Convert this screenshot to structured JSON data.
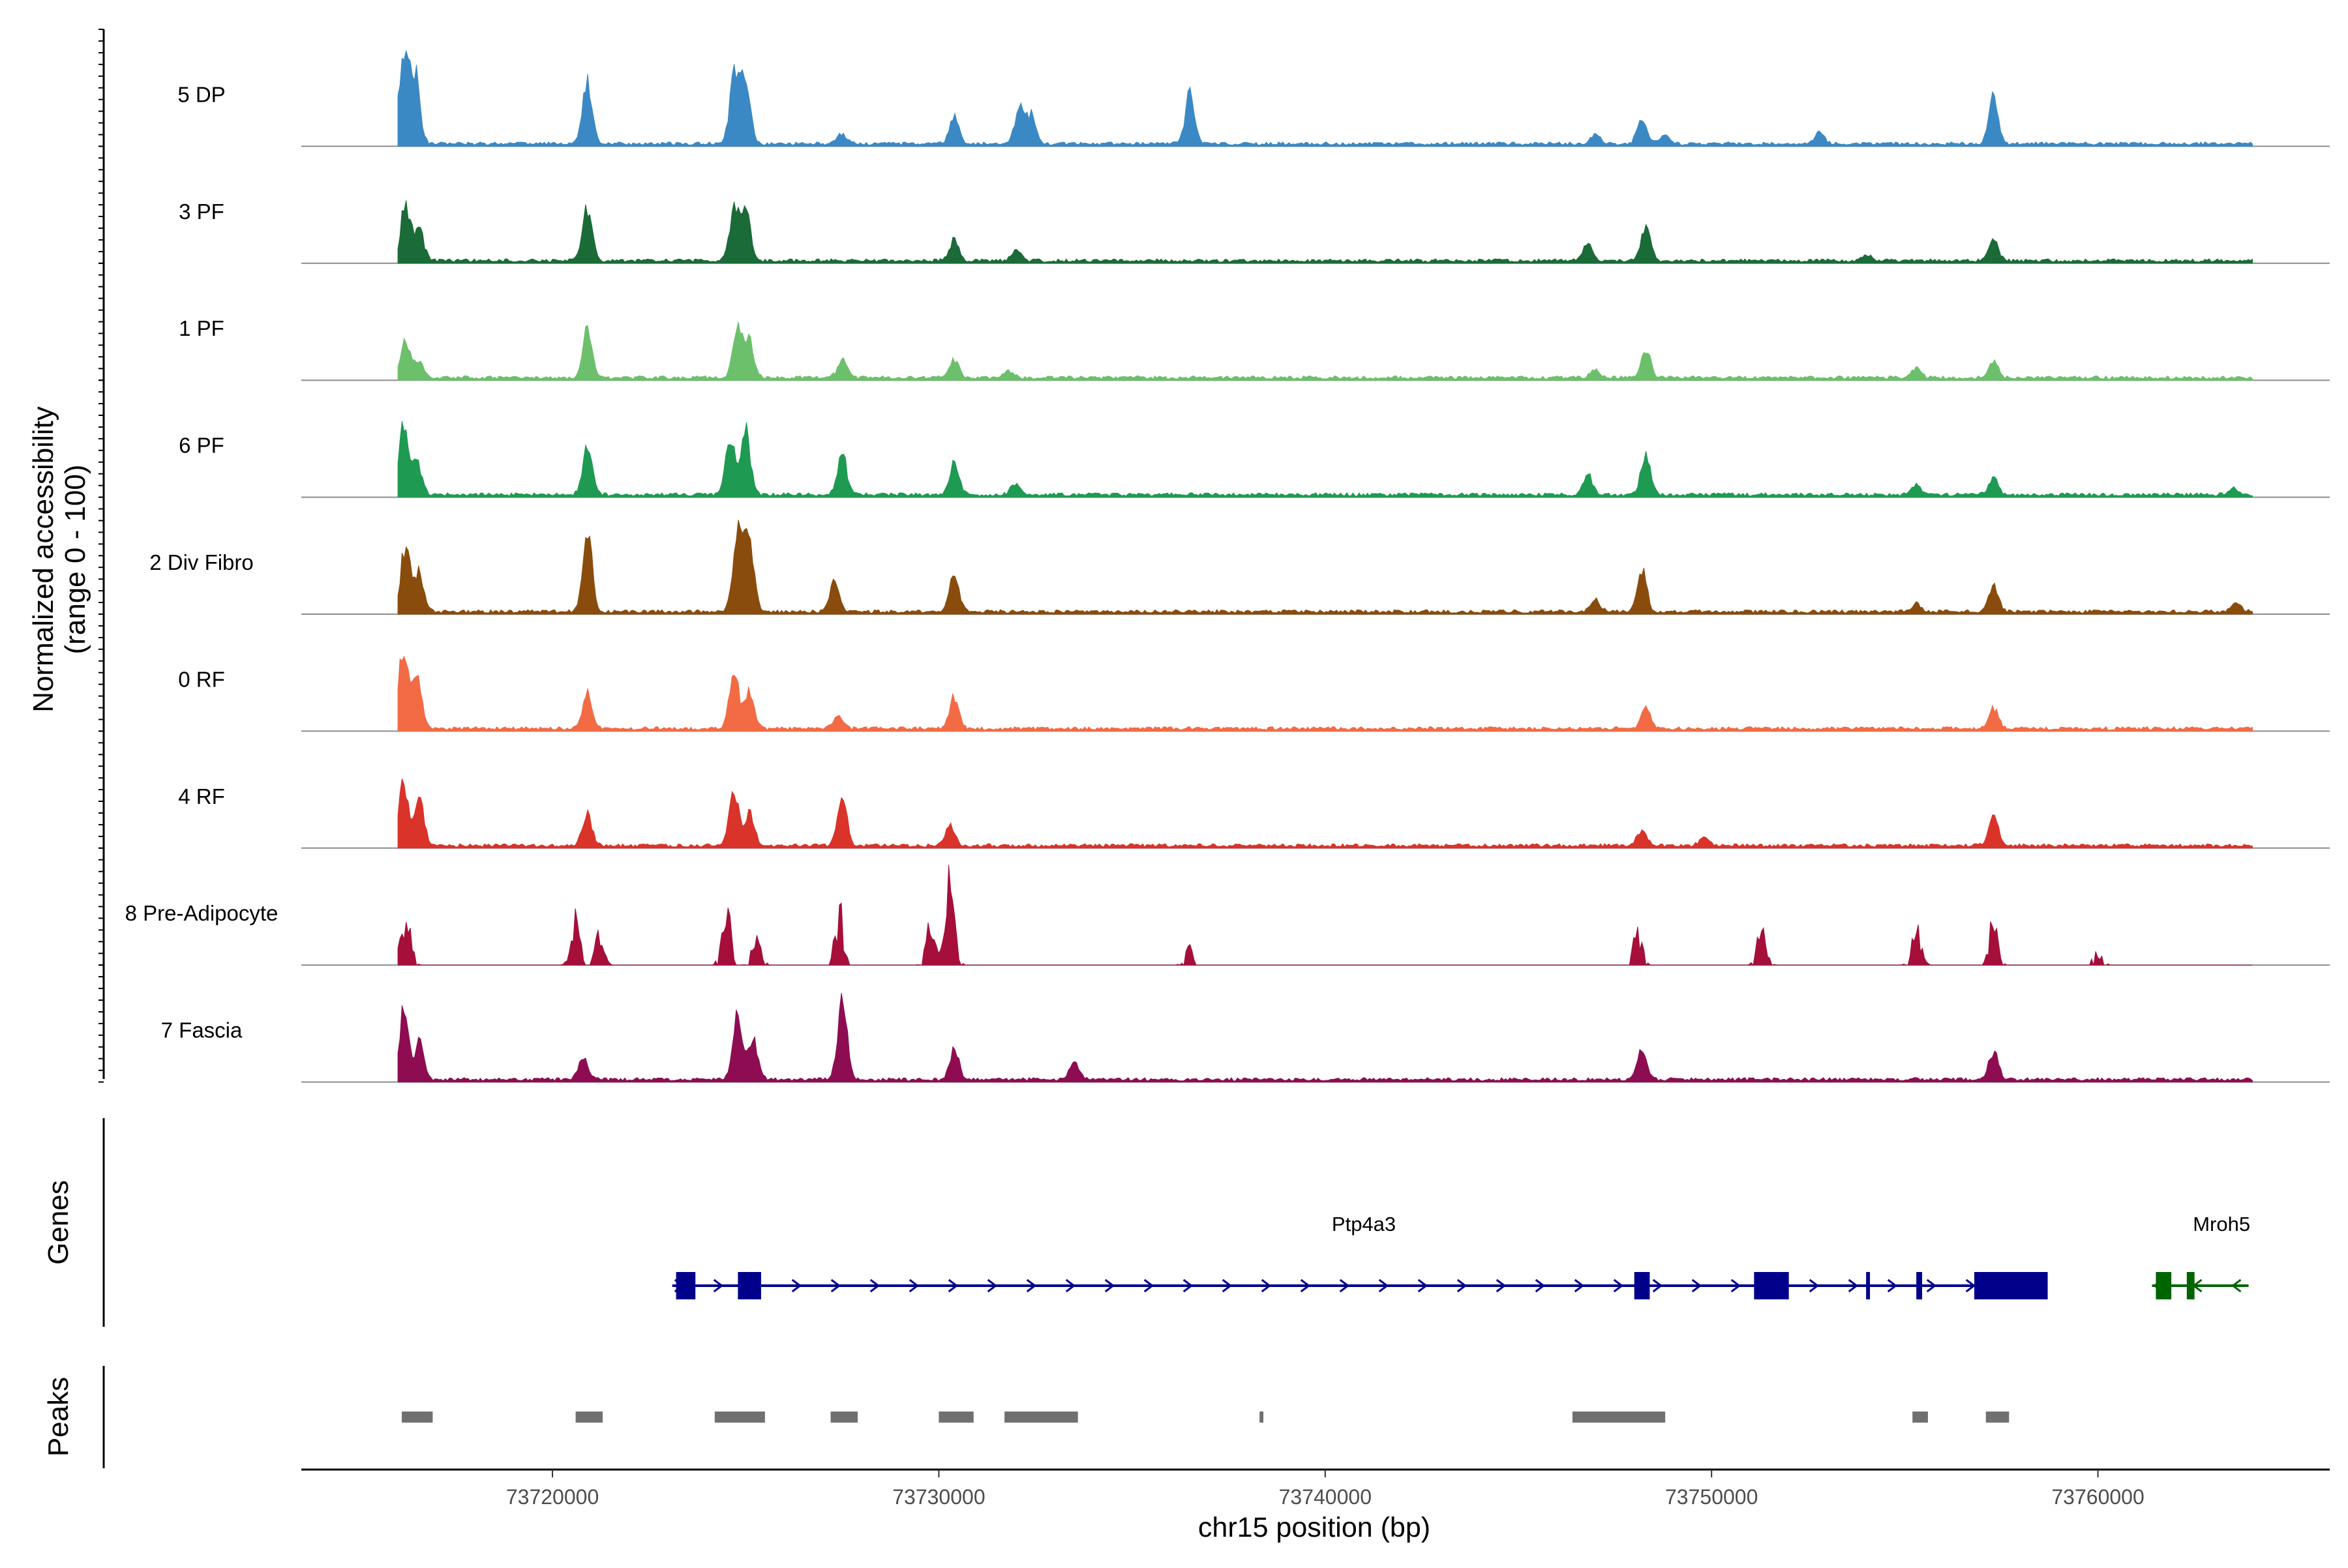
{
  "chart_data": {
    "type": "area",
    "title": "",
    "ylabel_line1": "Normalized accessibility",
    "ylabel_line2": "(range 0 - 100)",
    "ylim": [
      0,
      100
    ],
    "xlabel": "chr15 position (bp)",
    "xlim": [
      73713500,
      73766000
    ],
    "xticks": [
      73720000,
      73730000,
      73740000,
      73750000,
      73760000
    ],
    "xtick_labels": [
      "73720000",
      "73730000",
      "73740000",
      "73750000",
      "73760000"
    ],
    "panels": {
      "genes_label": "Genes",
      "peaks_label": "Peaks"
    },
    "tracks": [
      {
        "name": "5 DP",
        "color": "#3A89C4",
        "sparse": false,
        "peaks": [
          [
            73716150,
            100
          ],
          [
            73716450,
            70
          ],
          [
            73720900,
            65
          ],
          [
            73724700,
            70
          ],
          [
            73725000,
            75
          ],
          [
            73727500,
            10
          ],
          [
            73730400,
            28
          ],
          [
            73732100,
            42
          ],
          [
            73732400,
            30
          ],
          [
            73736500,
            55
          ],
          [
            73748200,
            25
          ],
          [
            73747000,
            10
          ],
          [
            73752800,
            12
          ],
          [
            73757300,
            50
          ],
          [
            73748800,
            10
          ]
        ]
      },
      {
        "name": "3 PF",
        "color": "#1A6B38",
        "sparse": false,
        "peaks": [
          [
            73716200,
            60
          ],
          [
            73716550,
            35
          ],
          [
            73720900,
            55
          ],
          [
            73724700,
            55
          ],
          [
            73725000,
            60
          ],
          [
            73730400,
            22
          ],
          [
            73732000,
            12
          ],
          [
            73746800,
            18
          ],
          [
            73748300,
            40
          ],
          [
            73757300,
            25
          ],
          [
            73754000,
            6
          ]
        ]
      },
      {
        "name": "1 PF",
        "color": "#6DC06B",
        "sparse": false,
        "peaks": [
          [
            73716200,
            38
          ],
          [
            73716550,
            18
          ],
          [
            73720900,
            52
          ],
          [
            73724800,
            55
          ],
          [
            73725100,
            38
          ],
          [
            73727500,
            20
          ],
          [
            73730400,
            20
          ],
          [
            73731800,
            8
          ],
          [
            73748300,
            32
          ],
          [
            73755300,
            10
          ],
          [
            73757300,
            16
          ],
          [
            73747000,
            8
          ]
        ]
      },
      {
        "name": "6 PF",
        "color": "#1E9A52",
        "sparse": false,
        "peaks": [
          [
            73716150,
            70
          ],
          [
            73716500,
            35
          ],
          [
            73720900,
            52
          ],
          [
            73724600,
            58
          ],
          [
            73725000,
            65
          ],
          [
            73727500,
            42
          ],
          [
            73730400,
            35
          ],
          [
            73732000,
            12
          ],
          [
            73746800,
            20
          ],
          [
            73748300,
            45
          ],
          [
            73755300,
            10
          ],
          [
            73757300,
            18
          ],
          [
            73763500,
            6
          ]
        ]
      },
      {
        "name": "2 Div Fibro",
        "color": "#8A4C0C",
        "sparse": false,
        "peaks": [
          [
            73716200,
            70
          ],
          [
            73716550,
            40
          ],
          [
            73720900,
            85
          ],
          [
            73724800,
            92
          ],
          [
            73725100,
            75
          ],
          [
            73727300,
            32
          ],
          [
            73730400,
            38
          ],
          [
            73748200,
            42
          ],
          [
            73747000,
            12
          ],
          [
            73757300,
            28
          ],
          [
            73755300,
            8
          ],
          [
            73763600,
            8
          ]
        ]
      },
      {
        "name": "0 RF",
        "color": "#F26B45",
        "sparse": false,
        "peaks": [
          [
            73716150,
            90
          ],
          [
            73716500,
            55
          ],
          [
            73720900,
            38
          ],
          [
            73724700,
            65
          ],
          [
            73725100,
            42
          ],
          [
            73727400,
            14
          ],
          [
            73730400,
            32
          ],
          [
            73748300,
            22
          ],
          [
            73757300,
            22
          ]
        ]
      },
      {
        "name": "4 RF",
        "color": "#D9332A",
        "sparse": false,
        "peaks": [
          [
            73716150,
            70
          ],
          [
            73716550,
            50
          ],
          [
            73720900,
            35
          ],
          [
            73724700,
            60
          ],
          [
            73725100,
            35
          ],
          [
            73727500,
            52
          ],
          [
            73730300,
            20
          ],
          [
            73748200,
            18
          ],
          [
            73757300,
            32
          ],
          [
            73749800,
            8
          ]
        ]
      },
      {
        "name": "8 Pre-Adipocyte",
        "color": "#A50F3A",
        "sparse": true,
        "peaks": [
          [
            73716200,
            60
          ],
          [
            73720600,
            45
          ],
          [
            73721200,
            35
          ],
          [
            73724500,
            50
          ],
          [
            73725300,
            30
          ],
          [
            73727400,
            50
          ],
          [
            73730300,
            75
          ],
          [
            73729800,
            35
          ],
          [
            73736500,
            20
          ],
          [
            73748100,
            35
          ],
          [
            73751300,
            30
          ],
          [
            73755300,
            40
          ],
          [
            73757300,
            38
          ],
          [
            73760000,
            12
          ]
        ]
      },
      {
        "name": "7 Fascia",
        "color": "#8E0D52",
        "sparse": false,
        "peaks": [
          [
            73716150,
            72
          ],
          [
            73716550,
            38
          ],
          [
            73720800,
            25
          ],
          [
            73724800,
            70
          ],
          [
            73725200,
            42
          ],
          [
            73727500,
            85
          ],
          [
            73730400,
            32
          ],
          [
            73733500,
            20
          ],
          [
            73748200,
            32
          ],
          [
            73757300,
            30
          ]
        ]
      }
    ],
    "genes": [
      {
        "name": "Ptp4a3",
        "strand": "+",
        "color": "#00008B",
        "start": 73723100,
        "end": 73758600,
        "exons": [
          [
            73723200,
            73723700
          ],
          [
            73724800,
            73725400
          ],
          [
            73748000,
            73748400
          ],
          [
            73751100,
            73752000
          ],
          [
            73754000,
            73754100
          ],
          [
            73755300,
            73755450
          ],
          [
            73756800,
            73758700
          ]
        ]
      },
      {
        "name": "Mroh5",
        "strand": "-",
        "color": "#006400",
        "start": 73761400,
        "end": 73763900,
        "exons": [
          [
            73761500,
            73761900
          ],
          [
            73762300,
            73762500
          ]
        ]
      }
    ],
    "peak_regions": [
      [
        73716100,
        73716900
      ],
      [
        73720600,
        73721300
      ],
      [
        73724200,
        73725500
      ],
      [
        73727200,
        73727900
      ],
      [
        73730000,
        73730900
      ],
      [
        73731700,
        73733600
      ],
      [
        73738300,
        73738400
      ],
      [
        73746400,
        73748800
      ],
      [
        73755200,
        73755600
      ],
      [
        73757100,
        73757700
      ]
    ]
  }
}
